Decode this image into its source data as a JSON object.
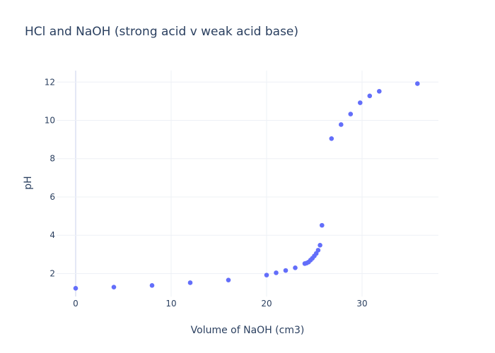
{
  "chart_data": {
    "type": "scatter",
    "title": "HCl and NaOH (strong acid v weak acid base)",
    "xlabel": "Volume of NaOH (cm3)",
    "ylabel": "pH",
    "xlim": [
      -2.0,
      38.0
    ],
    "ylim": [
      0.8,
      12.6
    ],
    "xticks": [
      0,
      10,
      20,
      30
    ],
    "yticks": [
      2,
      4,
      6,
      8,
      10,
      12
    ],
    "grid": true,
    "marker_color": "#636efa",
    "series": [
      {
        "x": [
          0,
          4,
          8,
          12,
          16,
          20,
          21,
          22,
          23,
          24,
          24.2,
          24.4,
          24.6,
          24.8,
          25.0,
          25.2,
          25.4,
          25.6,
          25.8,
          26.8,
          27.8,
          28.8,
          29.8,
          30.8,
          31.8,
          35.8
        ],
        "y": [
          1.23,
          1.29,
          1.38,
          1.52,
          1.66,
          1.92,
          2.04,
          2.16,
          2.3,
          2.52,
          2.55,
          2.6,
          2.7,
          2.8,
          2.92,
          3.05,
          3.22,
          3.48,
          4.52,
          9.05,
          9.78,
          10.33,
          10.92,
          11.28,
          11.52,
          11.92
        ]
      }
    ]
  }
}
